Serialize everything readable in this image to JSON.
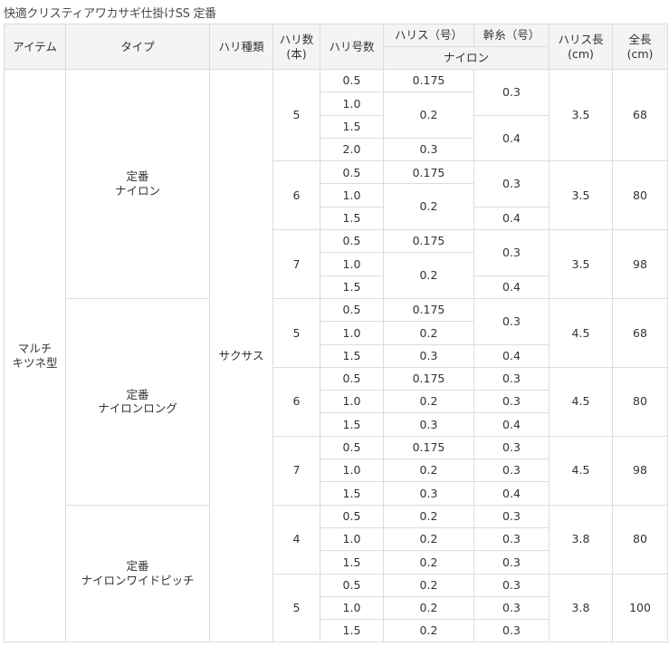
{
  "title": "快適クリスティアワカサギ仕掛けSS 定番",
  "headers": {
    "item": "アイテム",
    "type": "タイプ",
    "hook_type": "ハリ種類",
    "hook_count_line1": "ハリ数",
    "hook_count_line2": "(本)",
    "hook_size": "ハリ号数",
    "harisu": "ハリス（号）",
    "mikiito": "幹糸（号）",
    "material": "ナイロン",
    "harisu_length_line1": "ハリス長",
    "harisu_length_line2": "(cm)",
    "total_length_line1": "全長",
    "total_length_line2": "(cm)"
  },
  "item": {
    "line1": "マルチ",
    "line2": "キツネ型"
  },
  "hook_type": "サクサス",
  "types": [
    {
      "line1": "定番",
      "line2": "ナイロン",
      "sets": [
        {
          "count": "5",
          "harisu_length": "3.5",
          "total_length": "68",
          "hooks": [
            "0.5",
            "1.0",
            "1.5",
            "2.0"
          ],
          "harisu": [
            {
              "value": "0.175",
              "span": 1
            },
            {
              "value": "0.2",
              "span": 2
            },
            {
              "value": "0.3",
              "span": 1
            }
          ],
          "mikiito": [
            {
              "value": "0.3",
              "span": 2
            },
            {
              "value": "0.4",
              "span": 2
            }
          ]
        },
        {
          "count": "6",
          "harisu_length": "3.5",
          "total_length": "80",
          "hooks": [
            "0.5",
            "1.0",
            "1.5"
          ],
          "harisu": [
            {
              "value": "0.175",
              "span": 1
            },
            {
              "value": "0.2",
              "span": 2
            }
          ],
          "mikiito": [
            {
              "value": "0.3",
              "span": 2
            },
            {
              "value": "0.4",
              "span": 1
            }
          ]
        },
        {
          "count": "7",
          "harisu_length": "3.5",
          "total_length": "98",
          "hooks": [
            "0.5",
            "1.0",
            "1.5"
          ],
          "harisu": [
            {
              "value": "0.175",
              "span": 1
            },
            {
              "value": "0.2",
              "span": 2
            }
          ],
          "mikiito": [
            {
              "value": "0.3",
              "span": 2
            },
            {
              "value": "0.4",
              "span": 1
            }
          ]
        }
      ]
    },
    {
      "line1": "定番",
      "line2": "ナイロンロング",
      "sets": [
        {
          "count": "5",
          "harisu_length": "4.5",
          "total_length": "68",
          "hooks": [
            "0.5",
            "1.0",
            "1.5"
          ],
          "harisu": [
            {
              "value": "0.175",
              "span": 1
            },
            {
              "value": "0.2",
              "span": 1
            },
            {
              "value": "0.3",
              "span": 1
            }
          ],
          "mikiito": [
            {
              "value": "0.3",
              "span": 2
            },
            {
              "value": "0.4",
              "span": 1
            }
          ]
        },
        {
          "count": "6",
          "harisu_length": "4.5",
          "total_length": "80",
          "hooks": [
            "0.5",
            "1.0",
            "1.5"
          ],
          "harisu": [
            {
              "value": "0.175",
              "span": 1
            },
            {
              "value": "0.2",
              "span": 1
            },
            {
              "value": "0.3",
              "span": 1
            }
          ],
          "mikiito": [
            {
              "value": "0.3",
              "span": 1
            },
            {
              "value": "0.3",
              "span": 1
            },
            {
              "value": "0.4",
              "span": 1
            }
          ]
        },
        {
          "count": "7",
          "harisu_length": "4.5",
          "total_length": "98",
          "hooks": [
            "0.5",
            "1.0",
            "1.5"
          ],
          "harisu": [
            {
              "value": "0.175",
              "span": 1
            },
            {
              "value": "0.2",
              "span": 1
            },
            {
              "value": "0.3",
              "span": 1
            }
          ],
          "mikiito": [
            {
              "value": "0.3",
              "span": 1
            },
            {
              "value": "0.3",
              "span": 1
            },
            {
              "value": "0.4",
              "span": 1
            }
          ]
        }
      ]
    },
    {
      "line1": "定番",
      "line2": "ナイロンワイドピッチ",
      "sets": [
        {
          "count": "4",
          "harisu_length": "3.8",
          "total_length": "80",
          "hooks": [
            "0.5",
            "1.0",
            "1.5"
          ],
          "harisu": [
            {
              "value": "0.2",
              "span": 1
            },
            {
              "value": "0.2",
              "span": 1
            },
            {
              "value": "0.2",
              "span": 1
            }
          ],
          "mikiito": [
            {
              "value": "0.3",
              "span": 1
            },
            {
              "value": "0.3",
              "span": 1
            },
            {
              "value": "0.3",
              "span": 1
            }
          ]
        },
        {
          "count": "5",
          "harisu_length": "3.8",
          "total_length": "100",
          "hooks": [
            "0.5",
            "1.0",
            "1.5"
          ],
          "harisu": [
            {
              "value": "0.2",
              "span": 1
            },
            {
              "value": "0.2",
              "span": 1
            },
            {
              "value": "0.2",
              "span": 1
            }
          ],
          "mikiito": [
            {
              "value": "0.3",
              "span": 1
            },
            {
              "value": "0.3",
              "span": 1
            },
            {
              "value": "0.3",
              "span": 1
            }
          ]
        }
      ]
    }
  ]
}
